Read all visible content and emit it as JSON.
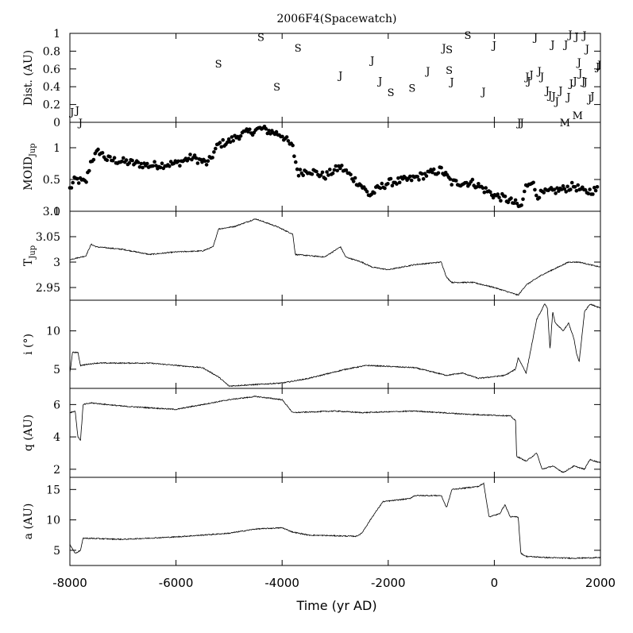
{
  "chart_data": {
    "type": "multi-panel",
    "title": "2006F4(Spacewatch)",
    "xlabel": "Time (yr AD)",
    "xlim": [
      -8000,
      2000
    ],
    "xticks": [
      -8000,
      -6000,
      -4000,
      -2000,
      0,
      2000
    ],
    "panels": [
      {
        "id": "dist",
        "type": "scatter-letters",
        "ylabel": "Dist. (AU)",
        "ylim": [
          0,
          1
        ],
        "yticks": [
          0,
          0.2,
          0.4,
          0.6,
          0.8,
          1
        ],
        "points": [
          {
            "x": -7960,
            "y": 0.12,
            "label": "J"
          },
          {
            "x": -7860,
            "y": 0.14,
            "label": "J"
          },
          {
            "x": -7800,
            "y": 0.0,
            "label": "J"
          },
          {
            "x": -5200,
            "y": 0.66,
            "label": "S"
          },
          {
            "x": -4400,
            "y": 0.96,
            "label": "S"
          },
          {
            "x": -3700,
            "y": 0.84,
            "label": "S"
          },
          {
            "x": -4100,
            "y": 0.4,
            "label": "S"
          },
          {
            "x": -2900,
            "y": 0.53,
            "label": "J"
          },
          {
            "x": -2300,
            "y": 0.7,
            "label": "J"
          },
          {
            "x": -2150,
            "y": 0.47,
            "label": "J"
          },
          {
            "x": -1950,
            "y": 0.34,
            "label": "S"
          },
          {
            "x": -1550,
            "y": 0.39,
            "label": "S"
          },
          {
            "x": -1250,
            "y": 0.58,
            "label": "J"
          },
          {
            "x": -950,
            "y": 0.84,
            "label": "J"
          },
          {
            "x": -850,
            "y": 0.82,
            "label": "S"
          },
          {
            "x": -850,
            "y": 0.59,
            "label": "S"
          },
          {
            "x": -800,
            "y": 0.46,
            "label": "J"
          },
          {
            "x": -500,
            "y": 0.98,
            "label": "S"
          },
          {
            "x": -200,
            "y": 0.35,
            "label": "J"
          },
          {
            "x": 0,
            "y": 0.87,
            "label": "J"
          },
          {
            "x": 470,
            "y": 0.0,
            "label": "J"
          },
          {
            "x": 520,
            "y": 0.0,
            "label": "J"
          },
          {
            "x": 620,
            "y": 0.52,
            "label": "J"
          },
          {
            "x": 650,
            "y": 0.47,
            "label": "J"
          },
          {
            "x": 700,
            "y": 0.54,
            "label": "J"
          },
          {
            "x": 780,
            "y": 0.96,
            "label": "J"
          },
          {
            "x": 850,
            "y": 0.58,
            "label": "J"
          },
          {
            "x": 900,
            "y": 0.52,
            "label": "J"
          },
          {
            "x": 1000,
            "y": 0.36,
            "label": "J"
          },
          {
            "x": 1050,
            "y": 0.31,
            "label": "J"
          },
          {
            "x": 1100,
            "y": 0.88,
            "label": "J"
          },
          {
            "x": 1120,
            "y": 0.3,
            "label": "J"
          },
          {
            "x": 1180,
            "y": 0.24,
            "label": "J"
          },
          {
            "x": 1250,
            "y": 0.36,
            "label": "J"
          },
          {
            "x": 1350,
            "y": 0.88,
            "label": "J"
          },
          {
            "x": 1330,
            "y": 0.0,
            "label": "M"
          },
          {
            "x": 1400,
            "y": 0.29,
            "label": "J"
          },
          {
            "x": 1430,
            "y": 0.99,
            "label": "J"
          },
          {
            "x": 1450,
            "y": 0.44,
            "label": "J"
          },
          {
            "x": 1520,
            "y": 0.47,
            "label": "J"
          },
          {
            "x": 1550,
            "y": 0.97,
            "label": "J"
          },
          {
            "x": 1570,
            "y": 0.08,
            "label": "M"
          },
          {
            "x": 1600,
            "y": 0.68,
            "label": "J"
          },
          {
            "x": 1620,
            "y": 0.56,
            "label": "J"
          },
          {
            "x": 1680,
            "y": 0.47,
            "label": "J"
          },
          {
            "x": 1700,
            "y": 0.98,
            "label": "J"
          },
          {
            "x": 1720,
            "y": 0.46,
            "label": "J"
          },
          {
            "x": 1750,
            "y": 0.83,
            "label": "J"
          },
          {
            "x": 1800,
            "y": 0.27,
            "label": "J"
          },
          {
            "x": 1850,
            "y": 0.3,
            "label": "J"
          },
          {
            "x": 1950,
            "y": 0.63,
            "label": "J"
          },
          {
            "x": 1980,
            "y": 0.65,
            "label": "J"
          }
        ]
      },
      {
        "id": "moid",
        "type": "scatter",
        "ylabel": "MOID",
        "ylabel_sub": "Jup",
        "ylim": [
          0,
          1.4
        ],
        "yticks": [
          0,
          0.5,
          1
        ],
        "anchors": [
          [
            -8000,
            0.35
          ],
          [
            -7900,
            0.5
          ],
          [
            -7700,
            0.45
          ],
          [
            -7600,
            0.8
          ],
          [
            -7450,
            0.95
          ],
          [
            -7300,
            0.82
          ],
          [
            -6500,
            0.72
          ],
          [
            -6000,
            0.75
          ],
          [
            -5700,
            0.85
          ],
          [
            -5400,
            0.75
          ],
          [
            -5200,
            1.05
          ],
          [
            -5000,
            1.1
          ],
          [
            -4800,
            1.2
          ],
          [
            -4600,
            1.25
          ],
          [
            -4400,
            1.3
          ],
          [
            -4000,
            1.2
          ],
          [
            -3800,
            1.0
          ],
          [
            -3700,
            0.6
          ],
          [
            -3500,
            0.65
          ],
          [
            -3200,
            0.55
          ],
          [
            -2900,
            0.7
          ],
          [
            -2700,
            0.55
          ],
          [
            -2500,
            0.4
          ],
          [
            -2350,
            0.25
          ],
          [
            -2200,
            0.35
          ],
          [
            -2000,
            0.45
          ],
          [
            -1600,
            0.5
          ],
          [
            -1200,
            0.6
          ],
          [
            -1000,
            0.65
          ],
          [
            -800,
            0.45
          ],
          [
            -400,
            0.45
          ],
          [
            -200,
            0.35
          ],
          [
            0,
            0.25
          ],
          [
            200,
            0.2
          ],
          [
            400,
            0.12
          ],
          [
            500,
            0.05
          ],
          [
            600,
            0.4
          ],
          [
            700,
            0.5
          ],
          [
            800,
            0.25
          ],
          [
            1000,
            0.3
          ],
          [
            1300,
            0.35
          ],
          [
            1500,
            0.4
          ],
          [
            1700,
            0.3
          ],
          [
            2000,
            0.35
          ]
        ]
      },
      {
        "id": "tjup",
        "type": "line",
        "ylabel": "T",
        "ylabel_sub": "Jup",
        "ylim": [
          2.925,
          3.1
        ],
        "yticks": [
          2.95,
          3,
          3.05,
          3.1
        ],
        "anchors": [
          [
            -8000,
            3.005
          ],
          [
            -7700,
            3.012
          ],
          [
            -7600,
            3.035
          ],
          [
            -7500,
            3.03
          ],
          [
            -7000,
            3.025
          ],
          [
            -6500,
            3.015
          ],
          [
            -6000,
            3.02
          ],
          [
            -5500,
            3.022
          ],
          [
            -5300,
            3.03
          ],
          [
            -5200,
            3.065
          ],
          [
            -4900,
            3.07
          ],
          [
            -4500,
            3.085
          ],
          [
            -4100,
            3.07
          ],
          [
            -3800,
            3.055
          ],
          [
            -3750,
            3.015
          ],
          [
            -3200,
            3.01
          ],
          [
            -2900,
            3.03
          ],
          [
            -2800,
            3.01
          ],
          [
            -2500,
            3.0
          ],
          [
            -2300,
            2.99
          ],
          [
            -2000,
            2.985
          ],
          [
            -1500,
            2.995
          ],
          [
            -1000,
            3.0
          ],
          [
            -900,
            2.97
          ],
          [
            -800,
            2.96
          ],
          [
            -400,
            2.96
          ],
          [
            0,
            2.95
          ],
          [
            300,
            2.94
          ],
          [
            450,
            2.935
          ],
          [
            600,
            2.955
          ],
          [
            900,
            2.975
          ],
          [
            1200,
            2.99
          ],
          [
            1400,
            3.0
          ],
          [
            1600,
            3.0
          ],
          [
            2000,
            2.99
          ]
        ]
      },
      {
        "id": "incl",
        "type": "line",
        "ylabel": "i (°)",
        "ylim": [
          2.5,
          14
        ],
        "yticks": [
          5,
          10
        ],
        "anchors": [
          [
            -8000,
            4.5
          ],
          [
            -7950,
            7.2
          ],
          [
            -7850,
            7.2
          ],
          [
            -7800,
            5.5
          ],
          [
            -7500,
            5.8
          ],
          [
            -6500,
            5.8
          ],
          [
            -5500,
            5.2
          ],
          [
            -5200,
            4.0
          ],
          [
            -5000,
            2.8
          ],
          [
            -4000,
            3.2
          ],
          [
            -3500,
            3.8
          ],
          [
            -2800,
            5.0
          ],
          [
            -2400,
            5.5
          ],
          [
            -1500,
            5.2
          ],
          [
            -900,
            4.2
          ],
          [
            -600,
            4.5
          ],
          [
            -300,
            3.8
          ],
          [
            200,
            4.2
          ],
          [
            400,
            5.0
          ],
          [
            450,
            6.5
          ],
          [
            600,
            4.5
          ],
          [
            700,
            8.0
          ],
          [
            800,
            11.5
          ],
          [
            950,
            13.5
          ],
          [
            1000,
            13.0
          ],
          [
            1050,
            7.5
          ],
          [
            1100,
            12.5
          ],
          [
            1150,
            11.0
          ],
          [
            1300,
            10.0
          ],
          [
            1400,
            11.0
          ],
          [
            1500,
            9.0
          ],
          [
            1550,
            7.0
          ],
          [
            1600,
            6.0
          ],
          [
            1700,
            12.5
          ],
          [
            1800,
            13.5
          ],
          [
            2000,
            13.0
          ]
        ]
      },
      {
        "id": "q",
        "type": "line",
        "ylabel": "q (AU)",
        "ylim": [
          1.5,
          7
        ],
        "yticks": [
          2,
          4,
          6
        ],
        "anchors": [
          [
            -8000,
            5.5
          ],
          [
            -7900,
            5.6
          ],
          [
            -7850,
            4.0
          ],
          [
            -7800,
            3.8
          ],
          [
            -7750,
            6.0
          ],
          [
            -7600,
            6.1
          ],
          [
            -7000,
            5.9
          ],
          [
            -6000,
            5.7
          ],
          [
            -5000,
            6.3
          ],
          [
            -4500,
            6.5
          ],
          [
            -4000,
            6.3
          ],
          [
            -3800,
            5.5
          ],
          [
            -3000,
            5.6
          ],
          [
            -2500,
            5.5
          ],
          [
            -1500,
            5.6
          ],
          [
            -500,
            5.4
          ],
          [
            300,
            5.3
          ],
          [
            400,
            5.0
          ],
          [
            420,
            2.8
          ],
          [
            600,
            2.5
          ],
          [
            800,
            3.0
          ],
          [
            900,
            2.0
          ],
          [
            1100,
            2.2
          ],
          [
            1300,
            1.8
          ],
          [
            1500,
            2.2
          ],
          [
            1700,
            2.0
          ],
          [
            1800,
            2.6
          ],
          [
            2000,
            2.4
          ]
        ]
      },
      {
        "id": "a",
        "type": "line",
        "ylabel": "a (AU)",
        "ylim": [
          2.5,
          17
        ],
        "yticks": [
          5,
          10,
          15
        ],
        "anchors": [
          [
            -8000,
            6.0
          ],
          [
            -7900,
            4.5
          ],
          [
            -7800,
            5.0
          ],
          [
            -7750,
            7.0
          ],
          [
            -7000,
            6.8
          ],
          [
            -6000,
            7.2
          ],
          [
            -5000,
            7.8
          ],
          [
            -4500,
            8.5
          ],
          [
            -4000,
            8.7
          ],
          [
            -3800,
            8.0
          ],
          [
            -3500,
            7.5
          ],
          [
            -2600,
            7.3
          ],
          [
            -2500,
            7.8
          ],
          [
            -2300,
            10.5
          ],
          [
            -2100,
            13.0
          ],
          [
            -1600,
            13.5
          ],
          [
            -1500,
            14.0
          ],
          [
            -1000,
            14.0
          ],
          [
            -900,
            12.0
          ],
          [
            -800,
            15.0
          ],
          [
            -300,
            15.5
          ],
          [
            -200,
            16.0
          ],
          [
            -100,
            10.5
          ],
          [
            100,
            11.0
          ],
          [
            200,
            12.5
          ],
          [
            300,
            10.5
          ],
          [
            450,
            10.5
          ],
          [
            500,
            4.5
          ],
          [
            600,
            4.0
          ],
          [
            1000,
            3.8
          ],
          [
            1500,
            3.7
          ],
          [
            2000,
            3.8
          ]
        ]
      }
    ]
  }
}
